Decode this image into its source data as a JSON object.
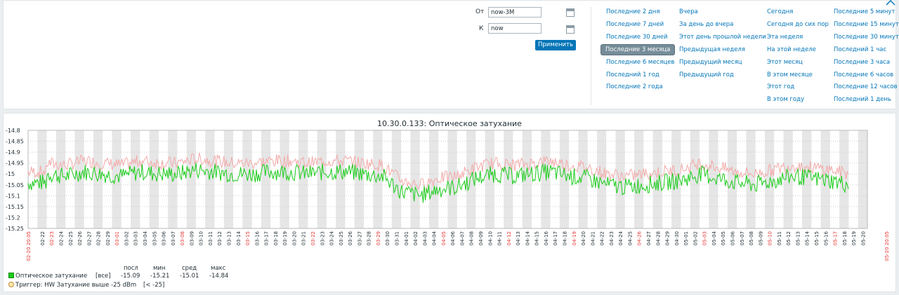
{
  "filter": {
    "from_label": "От",
    "from_value": "now-3M",
    "to_label": "К",
    "to_value": "now",
    "apply_label": "Применить"
  },
  "quick_ranges": [
    [
      "Последние 2 дня",
      "Последние 7 дней",
      "Последние 30 дней",
      "Последние 3 месяца",
      "Последние 6 месяцев",
      "Последний 1 год",
      "Последние 2 года"
    ],
    [
      "Вчера",
      "За день до вчера",
      "Этот день прошлой недели",
      "Предыдущая неделя",
      "Предыдущий месяц",
      "Предыдущий год"
    ],
    [
      "Сегодня",
      "Сегодня до сих пор",
      "Эта неделя",
      "На этой неделе",
      "Этот месяц",
      "В этом месяце",
      "Этот год",
      "В этом году"
    ],
    [
      "Последние 5 минут",
      "Последние 15 минут",
      "Последние 30 минут",
      "Последний 1 час",
      "Последние 3 часа",
      "Последние 6 часов",
      "Последние 12 часов",
      "Последний 1 день"
    ]
  ],
  "selected_range": "Последние 3 месяца",
  "chart_data": {
    "type": "line",
    "title": "10.30.0.133: Оптическое затухание",
    "y_ticks": [
      "-14.8",
      "-14.85",
      "-14.9",
      "-14.95",
      "-15",
      "-15.05",
      "-15.1",
      "-15.15",
      "-15.2",
      "-15.25"
    ],
    "ylim": [
      -15.25,
      -14.8
    ],
    "x_start_label": "02-20 20:05",
    "x_end_label": "05-20 20:05",
    "x_ticks": [
      "02-22",
      "02-23",
      "02-24",
      "02-25",
      "02-26",
      "02-27",
      "02-28",
      "02-29",
      "03-01",
      "03-02",
      "03-03",
      "03-04",
      "03-05",
      "03-06",
      "03-07",
      "03-08",
      "03-09",
      "03-10",
      "03-11",
      "03-12",
      "03-13",
      "03-14",
      "03-15",
      "03-16",
      "03-17",
      "03-18",
      "03-19",
      "03-20",
      "03-21",
      "03-22",
      "03-23",
      "03-24",
      "03-25",
      "03-26",
      "03-27",
      "03-28",
      "03-29",
      "03-30",
      "03-31",
      "04-01",
      "04-02",
      "04-03",
      "04-04",
      "04-05",
      "04-06",
      "04-07",
      "04-08",
      "04-09",
      "04-10",
      "04-11",
      "04-12",
      "04-13",
      "04-14",
      "04-15",
      "04-16",
      "04-17",
      "04-18",
      "04-19",
      "04-20",
      "04-21",
      "04-22",
      "04-23",
      "04-24",
      "04-25",
      "04-26",
      "04-27",
      "04-28",
      "04-29",
      "04-30",
      "05-01",
      "05-02",
      "05-03",
      "05-04",
      "05-05",
      "05-06",
      "05-07",
      "05-08",
      "05-09",
      "05-10",
      "05-11",
      "05-12",
      "05-13",
      "05-14",
      "05-15",
      "05-16",
      "05-17",
      "05-18",
      "05-19",
      "05-20"
    ],
    "x_tick_red": [
      "02-23",
      "03-01",
      "03-08",
      "03-15",
      "03-22",
      "03-29",
      "04-05",
      "04-12",
      "04-19",
      "04-26",
      "05-03",
      "05-10",
      "05-17"
    ],
    "series": [
      {
        "name": "Оптическое затухание",
        "color": "#1acc1a",
        "max_color": "#f4a9a9",
        "points": [
          [
            2,
            -15.0
          ],
          [
            4,
            -15.01
          ],
          [
            6,
            -14.99
          ],
          [
            8,
            -15.0
          ],
          [
            10,
            -15.01
          ],
          [
            12,
            -14.99
          ],
          [
            14,
            -15.0
          ],
          [
            16,
            -15.0
          ],
          [
            18,
            -14.98
          ],
          [
            20,
            -14.99
          ],
          [
            22,
            -15.0
          ],
          [
            24,
            -15.0
          ],
          [
            26,
            -14.99
          ],
          [
            28,
            -14.99
          ],
          [
            30,
            -15.0
          ],
          [
            32,
            -14.99
          ],
          [
            34,
            -14.99
          ],
          [
            36,
            -15.0
          ],
          [
            38,
            -15.01
          ],
          [
            40,
            -15.08
          ],
          [
            42,
            -15.1
          ],
          [
            44,
            -15.07
          ],
          [
            46,
            -15.06
          ],
          [
            48,
            -15.02
          ],
          [
            50,
            -15.0
          ],
          [
            52,
            -15.01
          ],
          [
            54,
            -15.0
          ],
          [
            56,
            -14.99
          ],
          [
            58,
            -15.01
          ],
          [
            60,
            -15.02
          ],
          [
            62,
            -15.05
          ],
          [
            64,
            -15.06
          ],
          [
            66,
            -15.05
          ],
          [
            68,
            -15.04
          ],
          [
            70,
            -15.03
          ],
          [
            72,
            -15.0
          ],
          [
            74,
            -15.02
          ],
          [
            76,
            -15.04
          ],
          [
            78,
            -15.05
          ],
          [
            80,
            -15.03
          ],
          [
            82,
            -15.01
          ],
          [
            84,
            -15.02
          ],
          [
            86,
            -15.03
          ],
          [
            88,
            -15.05
          ],
          [
            90,
            -15.04
          ]
        ]
      }
    ],
    "legend": {
      "series_name": "Оптическое затухание",
      "func": "[все]",
      "headers": [
        "посл",
        "мин",
        "сред",
        "макс"
      ],
      "values": [
        "-15.09",
        "-15.21",
        "-15.01",
        "-14.84"
      ],
      "trigger_label": "Триггер: HW Затухание выше -25 dBm",
      "trigger_value": "[< -25]"
    }
  }
}
